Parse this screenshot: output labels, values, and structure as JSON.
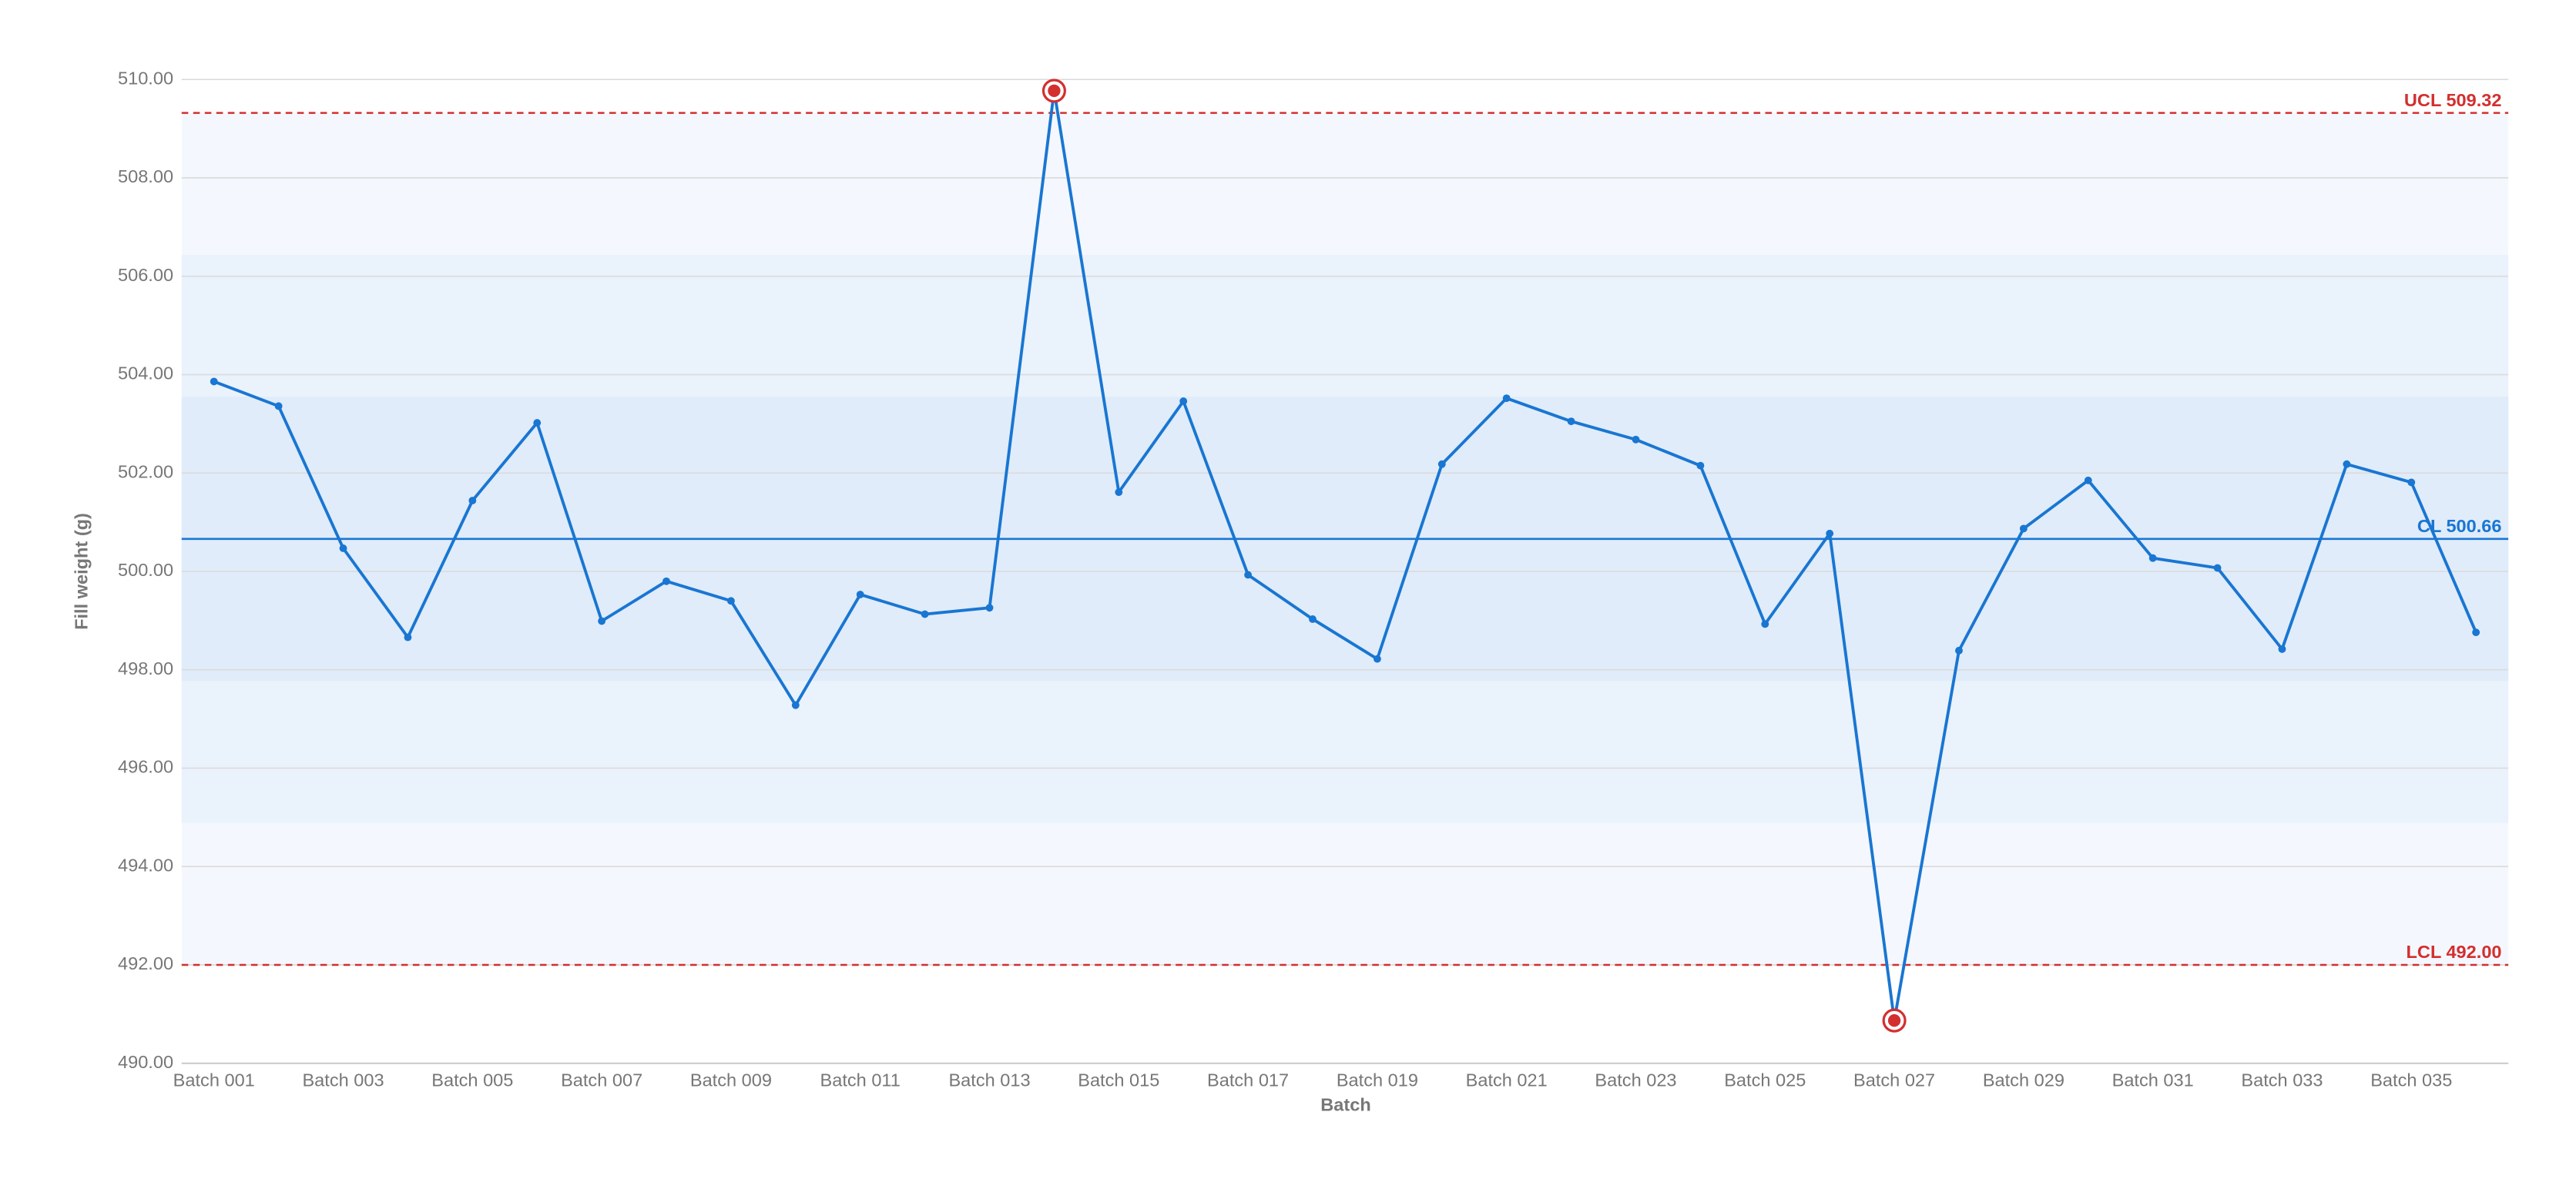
{
  "chart_data": {
    "type": "control",
    "x_label": "Batch",
    "y_label": "Fill weight (g)",
    "categories": [
      "Batch 001",
      null,
      "Batch 003",
      null,
      "Batch 005",
      null,
      "Batch 007",
      null,
      "Batch 009",
      null,
      "Batch 011",
      null,
      "Batch 013",
      null,
      "Batch 015",
      null,
      "Batch 017",
      null,
      "Batch 019",
      null,
      "Batch 021",
      null,
      "Batch 023",
      null,
      "Batch 025",
      null,
      "Batch 027",
      null,
      "Batch 029",
      null,
      "Batch 031",
      null,
      "Batch 033",
      null,
      "Batch 035",
      null
    ],
    "series": [
      {
        "color": "#1976d2",
        "values": [
          503.86,
          503.36,
          500.47,
          498.66,
          501.44,
          503.02,
          498.99,
          499.8,
          499.4,
          497.28,
          499.53,
          499.13,
          499.26,
          509.77,
          501.61,
          503.46,
          499.93,
          499.03,
          498.22,
          502.18,
          503.52,
          503.05,
          502.68,
          502.15,
          498.93,
          500.77,
          490.87,
          498.39,
          500.87,
          501.85,
          500.27,
          500.07,
          498.42,
          502.18,
          501.81,
          498.76
        ]
      }
    ],
    "control_limits": {
      "ucl": {
        "value": 509.32,
        "label": "UCL 509.32",
        "color": "#d32f2f"
      },
      "cl": {
        "value": 500.66,
        "label": "CL 500.66",
        "color": "#1976d2"
      },
      "lcl": {
        "value": 492.0,
        "label": "LCL 492.00",
        "color": "#d32f2f"
      }
    },
    "out_of_control_color": "#d32f2f",
    "ylim": [
      490,
      510
    ],
    "yticks": [
      {
        "value": 490,
        "label": "490.00"
      },
      {
        "value": 492,
        "label": "492.00"
      },
      {
        "value": 494,
        "label": "494.00"
      },
      {
        "value": 496,
        "label": "496.00"
      },
      {
        "value": 498,
        "label": "498.00"
      },
      {
        "value": 500,
        "label": "500.00"
      },
      {
        "value": 502,
        "label": "502.00"
      },
      {
        "value": 504,
        "label": "504.00"
      },
      {
        "value": 506,
        "label": "506.00"
      },
      {
        "value": 508,
        "label": "508.00"
      },
      {
        "value": 510,
        "label": "510.00"
      }
    ],
    "grid": true
  }
}
